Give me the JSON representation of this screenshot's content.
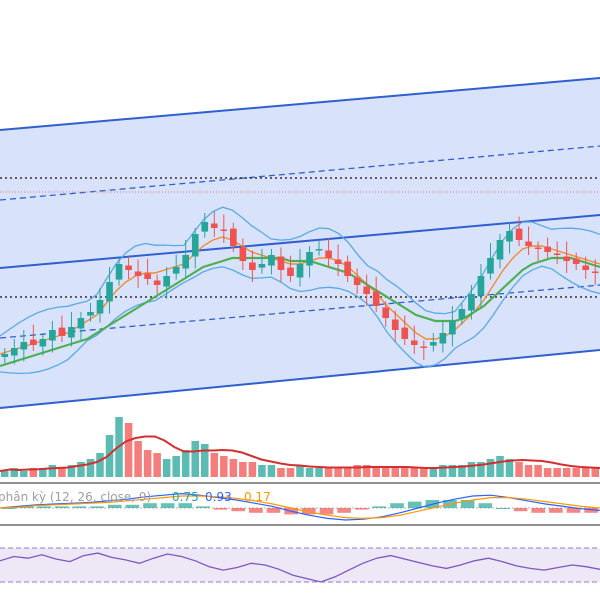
{
  "chart_data": {
    "type": "candlestick",
    "panes": [
      "price",
      "volume",
      "macd",
      "rsi"
    ],
    "grid": false,
    "colors": {
      "up": "#26a69a",
      "down": "#ef5350",
      "channel_line": "#2f5fd0",
      "channel_fill": "#d6e2fb",
      "bollinger": "#5aa9e6",
      "ma_fast": "#f28a2e",
      "ma_slow": "#4caf50",
      "dotted_level": "#333333",
      "red_dotted_level": "#e57373",
      "volume_ma": "#d32f2f",
      "macd_line": "#2962ff",
      "signal_line": "#ff9800",
      "rsi_line": "#7e57c2",
      "rsi_band": "#ede7f6"
    },
    "price_pane": {
      "y_range": [
        0,
        100
      ],
      "close": [
        22,
        24,
        26,
        25,
        27,
        30,
        28,
        31,
        34,
        36,
        40,
        46,
        52,
        50,
        48,
        47,
        45,
        48,
        51,
        55,
        62,
        66,
        64,
        63,
        58,
        53,
        50,
        52,
        55,
        50,
        48,
        52,
        56,
        57,
        54,
        52,
        48,
        45,
        42,
        38,
        34,
        30,
        27,
        25,
        24,
        26,
        29,
        33,
        37,
        42,
        48,
        54,
        60,
        63,
        60,
        58,
        57,
        56,
        55,
        53,
        52,
        50,
        49
      ],
      "ma_fast": [
        22,
        23,
        24,
        25,
        26,
        27,
        28,
        29,
        31,
        33,
        35,
        39,
        43,
        46,
        48,
        49,
        49,
        50,
        51,
        52,
        55,
        58,
        60,
        61,
        60,
        58,
        56,
        55,
        54,
        53,
        52,
        52,
        53,
        54,
        54,
        53,
        51,
        48,
        45,
        42,
        38,
        35,
        32,
        29,
        27,
        27,
        28,
        30,
        33,
        36,
        40,
        45,
        50,
        54,
        57,
        58,
        58,
        57,
        56,
        55,
        54,
        53,
        52
      ],
      "ma_slow": [
        18,
        19,
        20,
        21,
        22,
        23,
        24,
        25,
        26,
        27,
        29,
        31,
        33,
        35,
        37,
        39,
        41,
        43,
        45,
        47,
        49,
        51,
        52,
        53,
        54,
        54,
        54,
        54,
        54,
        54,
        53,
        53,
        53,
        52,
        51,
        50,
        49,
        47,
        45,
        43,
        41,
        39,
        37,
        35,
        34,
        33,
        33,
        33,
        34,
        36,
        38,
        41,
        44,
        47,
        50,
        52,
        53,
        54,
        54,
        54,
        53,
        52,
        51
      ],
      "dotted_levels": [
        85,
        50
      ],
      "red_dotted_level": 82
    },
    "volume_pane": {
      "values": [
        2,
        3,
        2,
        3,
        3,
        4,
        3,
        4,
        5,
        6,
        8,
        14,
        20,
        18,
        12,
        9,
        8,
        6,
        7,
        9,
        12,
        11,
        8,
        7,
        6,
        5,
        5,
        4,
        4,
        3,
        3,
        4,
        3,
        3,
        3,
        3,
        3,
        4,
        4,
        3,
        3,
        3,
        3,
        3,
        3,
        3,
        4,
        4,
        4,
        5,
        5,
        6,
        7,
        6,
        5,
        4,
        4,
        3,
        3,
        3,
        3,
        3,
        3
      ]
    },
    "macd_pane": {
      "legend_label": "phân kỳ (12, 26, close, 9)",
      "values": [
        "0.75",
        "0.93",
        "0.17"
      ],
      "macd_line": [
        0,
        0.2,
        0.4,
        0.5,
        0.6,
        0.7,
        0.9,
        1.1,
        1.4,
        1.6,
        1.8,
        1.6,
        1.3,
        1.0,
        0.6,
        0.2,
        -0.4,
        -0.9,
        -1.3,
        -1.5,
        -1.4,
        -1.1,
        -0.6,
        0,
        0.6,
        1.1,
        1.5,
        1.6,
        1.3,
        0.9,
        0.5,
        0.2,
        -0.1,
        -0.3
      ],
      "signal_line": [
        0,
        0.1,
        0.3,
        0.4,
        0.5,
        0.6,
        0.7,
        0.9,
        1.1,
        1.3,
        1.5,
        1.5,
        1.4,
        1.2,
        0.9,
        0.5,
        0.0,
        -0.5,
        -0.9,
        -1.2,
        -1.3,
        -1.2,
        -0.9,
        -0.4,
        0.1,
        0.6,
        1.0,
        1.3,
        1.3,
        1.1,
        0.8,
        0.5,
        0.2,
        0.0
      ]
    },
    "rsi_pane": {
      "band": [
        30,
        70
      ],
      "values": [
        55,
        60,
        58,
        62,
        57,
        54,
        61,
        64,
        59,
        56,
        52,
        58,
        63,
        60,
        55,
        48,
        44,
        47,
        52,
        50,
        45,
        38,
        34,
        30,
        36,
        44,
        52,
        58,
        61,
        57,
        53,
        49,
        46,
        50,
        55,
        58,
        54,
        49,
        46,
        44,
        47,
        50,
        48,
        45
      ]
    }
  }
}
